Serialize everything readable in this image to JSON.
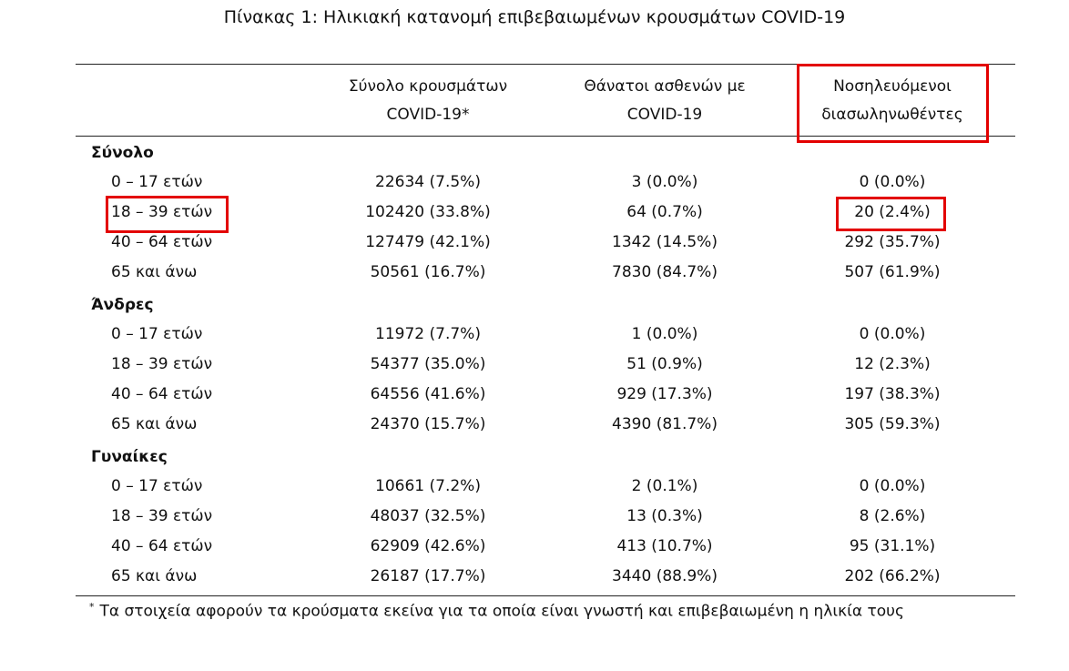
{
  "title": "Πίνακας 1: Ηλικιακή κατανομή επιβεβαιωμένων κρουσμάτων COVID-19",
  "headers": [
    {
      "line1": "Σύνολο κρουσμάτων",
      "line2": "COVID-19*"
    },
    {
      "line1": "Θάνατοι ασθενών με",
      "line2": "COVID-19"
    },
    {
      "line1": "Νοσηλευόμενοι",
      "line2": "διασωληνωθέντες"
    }
  ],
  "sections": [
    {
      "name": "Σύνολο",
      "rows": [
        {
          "label": "0 – 17 ετών",
          "cases": "22634 (7.5%)",
          "deaths": "3 (0.0%)",
          "intubated": "0 (0.0%)"
        },
        {
          "label": "18 – 39 ετών",
          "cases": "102420 (33.8%)",
          "deaths": "64 (0.7%)",
          "intubated": "20 (2.4%)"
        },
        {
          "label": "40 – 64 ετών",
          "cases": "127479 (42.1%)",
          "deaths": "1342 (14.5%)",
          "intubated": "292 (35.7%)"
        },
        {
          "label": "65 και άνω",
          "cases": "50561 (16.7%)",
          "deaths": "7830 (84.7%)",
          "intubated": "507 (61.9%)"
        }
      ]
    },
    {
      "name": "Άνδρες",
      "rows": [
        {
          "label": "0 – 17 ετών",
          "cases": "11972 (7.7%)",
          "deaths": "1 (0.0%)",
          "intubated": "0 (0.0%)"
        },
        {
          "label": "18 – 39 ετών",
          "cases": "54377 (35.0%)",
          "deaths": "51 (0.9%)",
          "intubated": "12 (2.3%)"
        },
        {
          "label": "40 – 64 ετών",
          "cases": "64556 (41.6%)",
          "deaths": "929 (17.3%)",
          "intubated": "197 (38.3%)"
        },
        {
          "label": "65 και άνω",
          "cases": "24370 (15.7%)",
          "deaths": "4390 (81.7%)",
          "intubated": "305 (59.3%)"
        }
      ]
    },
    {
      "name": "Γυναίκες",
      "rows": [
        {
          "label": "0 – 17 ετών",
          "cases": "10661 (7.2%)",
          "deaths": "2 (0.1%)",
          "intubated": "0 (0.0%)"
        },
        {
          "label": "18 – 39 ετών",
          "cases": "48037 (32.5%)",
          "deaths": "13 (0.3%)",
          "intubated": "8 (2.6%)"
        },
        {
          "label": "40 – 64 ετών",
          "cases": "62909 (42.6%)",
          "deaths": "413 (10.7%)",
          "intubated": "95 (31.1%)"
        },
        {
          "label": "65 και άνω",
          "cases": "26187 (17.7%)",
          "deaths": "3440 (88.9%)",
          "intubated": "202 (66.2%)"
        }
      ]
    }
  ],
  "footnote": {
    "mark": "*",
    "text": "Τα στοιχεία αφορούν τα κρούσματα εκείνα για τα οποία είναι γνωστή και επιβεβαιωμένη η ηλικία τους"
  },
  "highlight_color": "#e30000"
}
